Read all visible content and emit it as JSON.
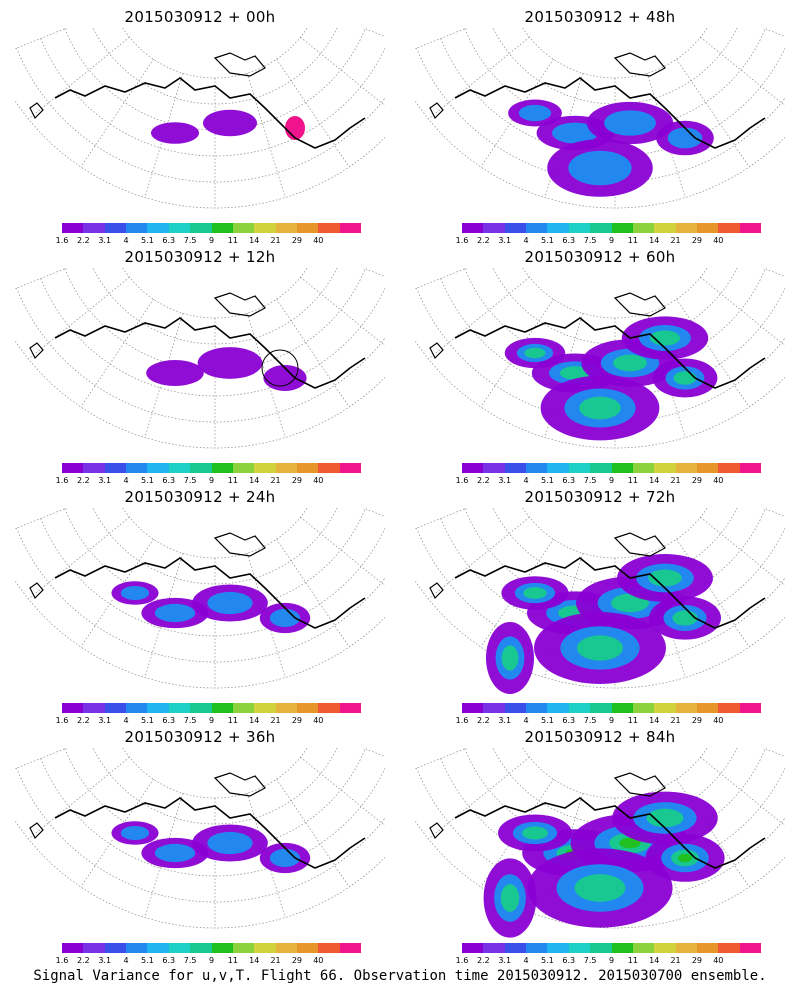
{
  "panels": [
    {
      "title": "2015030912 + 00h",
      "level": 0
    },
    {
      "title": "2015030912 + 48h",
      "level": 3
    },
    {
      "title": "2015030912 + 12h",
      "level": 1
    },
    {
      "title": "2015030912 + 60h",
      "level": 4
    },
    {
      "title": "2015030912 + 24h",
      "level": 2
    },
    {
      "title": "2015030912 + 72h",
      "level": 5
    },
    {
      "title": "2015030912 + 36h",
      "level": 2
    },
    {
      "title": "2015030912 + 84h",
      "level": 6
    }
  ],
  "colorbar": {
    "labels": [
      "1.6",
      "2.2",
      "3.1",
      "4",
      "5.1",
      "6.3",
      "7.5",
      "9",
      "11",
      "14",
      "21",
      "29",
      "40"
    ],
    "colors": [
      "#8a00d4",
      "#7a32e6",
      "#3a4fe8",
      "#2288f0",
      "#22b4f0",
      "#1dd0c8",
      "#18c890",
      "#20c020",
      "#8cd23c",
      "#d2d23c",
      "#e6b43c",
      "#e69628",
      "#f05a32",
      "#f0148c"
    ]
  },
  "footer": "Signal Variance for u,v,T. Flight 66. Observation time 2015030912. 2015030700 ensemble."
}
